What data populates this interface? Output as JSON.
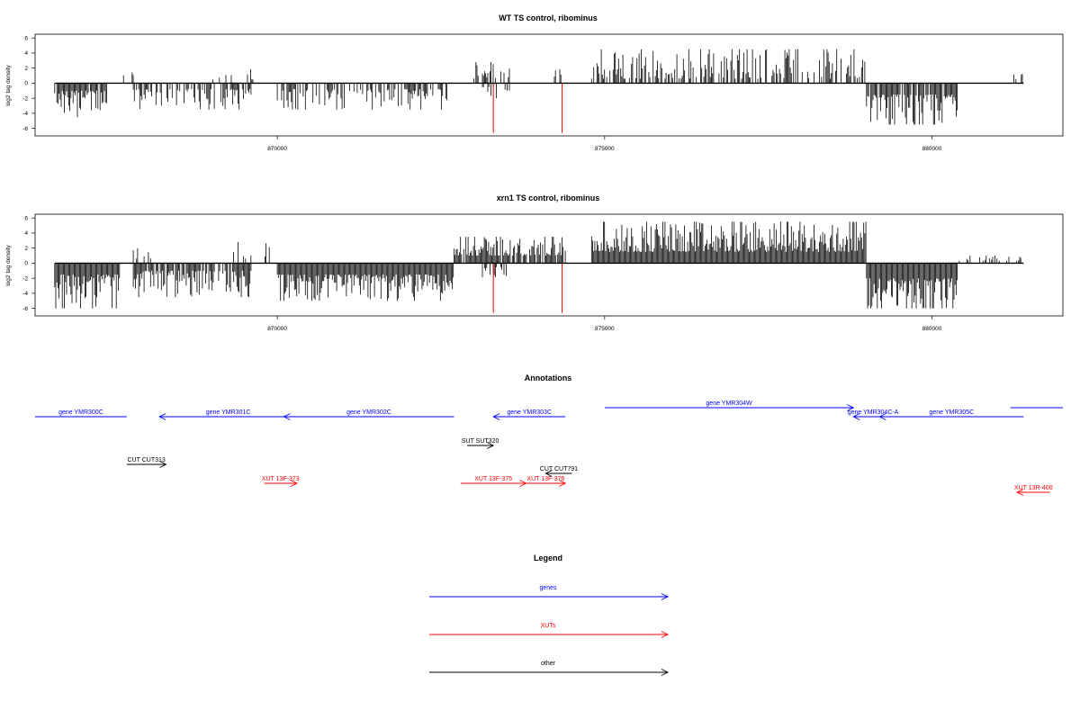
{
  "chart_data": [
    {
      "type": "bar",
      "title": "WT TS control, ribominus",
      "ylabel": "log2 tag density",
      "xlabel": "",
      "xlim": [
        866300,
        882000
      ],
      "ylim": [
        -7,
        6.5
      ],
      "xticks": [
        870000,
        875000,
        880000
      ],
      "xtick_labels": [
        "870000",
        "875000",
        "880000"
      ],
      "yticks": [
        -6,
        -4,
        -2,
        0,
        2,
        4,
        6
      ],
      "ytick_labels": [
        "-6",
        "-4",
        "-2",
        "0",
        "2",
        "4",
        "6"
      ],
      "baseline": {
        "x": [
          866600,
          881400
        ],
        "y": 0
      },
      "highlight_color": "#ff0000",
      "highlights": [
        {
          "x": 873300,
          "y": -6.6
        },
        {
          "x": 874350,
          "y": -6.6
        }
      ],
      "segments": [
        {
          "x0": 866600,
          "x1": 867400,
          "ymin": -4.5,
          "ymax": -1,
          "density": 0.9
        },
        {
          "x0": 867600,
          "x1": 867800,
          "ymin": 0.8,
          "ymax": 1.6,
          "density": 0.2
        },
        {
          "x0": 867800,
          "x1": 869600,
          "ymin": -3.5,
          "ymax": -0.8,
          "density": 0.6
        },
        {
          "x0": 869000,
          "x1": 869800,
          "ymin": 0.5,
          "ymax": 2.4,
          "density": 0.2
        },
        {
          "x0": 870000,
          "x1": 872600,
          "ymin": -3.5,
          "ymax": -0.8,
          "density": 0.6
        },
        {
          "x0": 873000,
          "x1": 873600,
          "ymin": 0.6,
          "ymax": 2.8,
          "density": 0.4
        },
        {
          "x0": 873100,
          "x1": 873700,
          "ymin": -2,
          "ymax": -0.5,
          "density": 0.3
        },
        {
          "x0": 874200,
          "x1": 874400,
          "ymin": 0.6,
          "ymax": 2.5,
          "density": 0.3
        },
        {
          "x0": 874800,
          "x1": 879000,
          "ymin": 0.6,
          "ymax": 4.5,
          "density": 0.6
        },
        {
          "x0": 879000,
          "x1": 880400,
          "ymin": -5.5,
          "ymax": -1.5,
          "density": 0.95
        },
        {
          "x0": 881200,
          "x1": 881400,
          "ymin": 0.5,
          "ymax": 1.2,
          "density": 0.2
        }
      ]
    },
    {
      "type": "bar",
      "title": "xrn1 TS control, ribominus",
      "ylabel": "log2 tag density",
      "xlabel": "",
      "xlim": [
        866300,
        882000
      ],
      "ylim": [
        -7,
        6.5
      ],
      "xticks": [
        870000,
        875000,
        880000
      ],
      "xtick_labels": [
        "870000",
        "875000",
        "880000"
      ],
      "yticks": [
        -6,
        -4,
        -2,
        0,
        2,
        4,
        6
      ],
      "ytick_labels": [
        "-6",
        "-4",
        "-2",
        "0",
        "2",
        "4",
        "6"
      ],
      "baseline": {
        "x": [
          866600,
          881400
        ],
        "y": 0
      },
      "highlight_color": "#ff0000",
      "highlights": [
        {
          "x": 873300,
          "y": -6.6
        },
        {
          "x": 874350,
          "y": -6.6
        }
      ],
      "segments": [
        {
          "x0": 866600,
          "x1": 867600,
          "ymin": -6,
          "ymax": -1.5,
          "density": 1
        },
        {
          "x0": 867800,
          "x1": 868200,
          "ymin": 0.6,
          "ymax": 2,
          "density": 0.3
        },
        {
          "x0": 867800,
          "x1": 869600,
          "ymin": -4.5,
          "ymax": -1,
          "density": 0.8
        },
        {
          "x0": 869300,
          "x1": 869900,
          "ymin": 0.6,
          "ymax": 3,
          "density": 0.3
        },
        {
          "x0": 870000,
          "x1": 872700,
          "ymin": -5,
          "ymax": -1.5,
          "density": 1
        },
        {
          "x0": 872700,
          "x1": 874400,
          "ymin": 1,
          "ymax": 3.5,
          "density": 0.9
        },
        {
          "x0": 873100,
          "x1": 873500,
          "ymin": -2,
          "ymax": -0.5,
          "density": 0.4
        },
        {
          "x0": 874800,
          "x1": 879000,
          "ymin": 1.5,
          "ymax": 5.5,
          "density": 1
        },
        {
          "x0": 879000,
          "x1": 880400,
          "ymin": -6,
          "ymax": -2,
          "density": 1
        },
        {
          "x0": 880400,
          "x1": 881400,
          "ymin": 0.3,
          "ymax": 1,
          "density": 0.3
        }
      ]
    },
    {
      "type": "annotation-track",
      "title": "Annotations",
      "xlim": [
        866300,
        882000
      ],
      "features": [
        {
          "label": "gene YMR300C",
          "x0": 866300,
          "x1": 867700,
          "strand": "+",
          "row": 0,
          "color": "#0000ff",
          "arrow": false
        },
        {
          "label": "gene YMR301C",
          "x0": 868200,
          "x1": 870300,
          "strand": "-",
          "row": 0,
          "color": "#0000ff",
          "arrow": true
        },
        {
          "label": "gene YMR302C",
          "x0": 870100,
          "x1": 872700,
          "strand": "-",
          "row": 0,
          "color": "#0000ff",
          "arrow": true
        },
        {
          "label": "gene YMR303C",
          "x0": 873300,
          "x1": 874400,
          "strand": "-",
          "row": 0,
          "color": "#0000ff",
          "arrow": true
        },
        {
          "label": "gene YMR304W",
          "x0": 875000,
          "x1": 878800,
          "strand": "+",
          "row": -1,
          "color": "#0000ff",
          "arrow": true
        },
        {
          "label": "gene YMR304C-A",
          "x0": 878800,
          "x1": 879400,
          "strand": "-",
          "row": 0,
          "color": "#0000ff",
          "arrow": true
        },
        {
          "label": "gene YMR305C",
          "x0": 879200,
          "x1": 881400,
          "strand": "-",
          "row": 0,
          "color": "#0000ff",
          "arrow": true
        },
        {
          "label": "",
          "x0": 881200,
          "x1": 882000,
          "strand": "+",
          "row": -1,
          "color": "#0000ff",
          "arrow": false
        },
        {
          "label": "SUT SUT320",
          "x0": 872900,
          "x1": 873300,
          "strand": "+",
          "row": 1,
          "color": "#000000",
          "arrow": true
        },
        {
          "label": "CUT CUT313",
          "x0": 867700,
          "x1": 868300,
          "strand": "+",
          "row": 2,
          "color": "#000000",
          "arrow": true
        },
        {
          "label": "CUT CUT791",
          "x0": 874100,
          "x1": 874500,
          "strand": "-",
          "row": 3,
          "color": "#000000",
          "arrow": true
        },
        {
          "label": "XUT 13F-373",
          "x0": 869800,
          "x1": 870300,
          "strand": "+",
          "row": 4,
          "color": "#ff0000",
          "arrow": true
        },
        {
          "label": "XUT 13F-375",
          "x0": 872800,
          "x1": 873800,
          "strand": "+",
          "row": 4,
          "color": "#ff0000",
          "arrow": true
        },
        {
          "label": "XUT 13F-376",
          "x0": 873800,
          "x1": 874400,
          "strand": "+",
          "row": 4,
          "color": "#ff0000",
          "arrow": true
        },
        {
          "label": "XUT 13R-400",
          "x0": 881300,
          "x1": 881800,
          "strand": "-",
          "row": 5,
          "color": "#ff0000",
          "arrow": true
        }
      ]
    }
  ],
  "legend": {
    "title": "Legend",
    "items": [
      {
        "label": "genes",
        "color": "#0000ff"
      },
      {
        "label": "XUTs",
        "color": "#ff0000"
      },
      {
        "label": "other",
        "color": "#000000"
      }
    ]
  }
}
